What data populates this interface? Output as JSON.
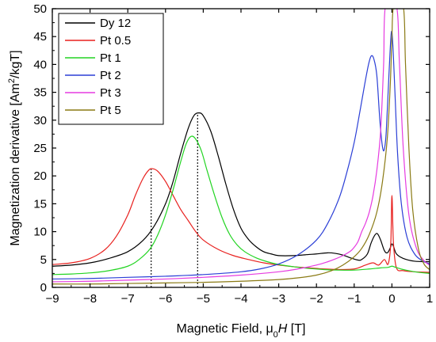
{
  "chart_data": {
    "type": "line",
    "xlabel": "Magnetic Field, μ0H [T]",
    "ylabel": "Magnetization derivative [Am2/kgT]",
    "xlim": [
      -9,
      1
    ],
    "ylim": [
      0,
      50
    ],
    "xticks": [
      -9,
      -8,
      -7,
      -6,
      -5,
      -4,
      -3,
      -2,
      -1,
      0,
      1
    ],
    "yticks": [
      0,
      5,
      10,
      15,
      20,
      25,
      30,
      35,
      40,
      45,
      50
    ],
    "legend_position": "top-left",
    "grid": false,
    "annotations": [
      {
        "type": "vertical-dotted-line",
        "x": -6.38,
        "y_top": 21.2
      },
      {
        "type": "vertical-dotted-line",
        "x": -5.15,
        "y_top": 31.2
      }
    ],
    "series": [
      {
        "name": "Dy 12",
        "color": "#000000",
        "points": [
          [
            -9,
            3.8
          ],
          [
            -8.5,
            4.0
          ],
          [
            -8,
            4.4
          ],
          [
            -7.5,
            5.2
          ],
          [
            -7,
            6.4
          ],
          [
            -6.6,
            8.4
          ],
          [
            -6.3,
            11.0
          ],
          [
            -6.0,
            15.0
          ],
          [
            -5.8,
            19.0
          ],
          [
            -5.6,
            24.0
          ],
          [
            -5.4,
            28.5
          ],
          [
            -5.25,
            30.8
          ],
          [
            -5.12,
            31.3
          ],
          [
            -5.0,
            30.8
          ],
          [
            -4.8,
            28.0
          ],
          [
            -4.6,
            23.5
          ],
          [
            -4.4,
            18.5
          ],
          [
            -4.2,
            14.0
          ],
          [
            -4.0,
            10.6
          ],
          [
            -3.8,
            8.6
          ],
          [
            -3.6,
            7.3
          ],
          [
            -3.4,
            6.4
          ],
          [
            -3.2,
            6.0
          ],
          [
            -3.0,
            5.7
          ],
          [
            -2.6,
            5.7
          ],
          [
            -2.2,
            5.9
          ],
          [
            -2.0,
            6.0
          ],
          [
            -1.7,
            6.2
          ],
          [
            -1.5,
            6.1
          ],
          [
            -1.3,
            5.8
          ],
          [
            -1.1,
            5.3
          ],
          [
            -0.9,
            4.9
          ],
          [
            -0.8,
            5.0
          ],
          [
            -0.65,
            6.0
          ],
          [
            -0.55,
            8.0
          ],
          [
            -0.45,
            9.4
          ],
          [
            -0.38,
            9.6
          ],
          [
            -0.3,
            8.5
          ],
          [
            -0.2,
            6.6
          ],
          [
            -0.12,
            6.2
          ],
          [
            -0.05,
            7.0
          ],
          [
            0.0,
            7.8
          ],
          [
            0.05,
            7.2
          ],
          [
            0.12,
            6.0
          ],
          [
            0.3,
            5.2
          ],
          [
            0.6,
            4.7
          ],
          [
            1.0,
            4.6
          ]
        ]
      },
      {
        "name": "Pt 0.5",
        "color": "#e8211f",
        "points": [
          [
            -9,
            4.1
          ],
          [
            -8.5,
            4.4
          ],
          [
            -8,
            5.2
          ],
          [
            -7.6,
            6.8
          ],
          [
            -7.3,
            9.2
          ],
          [
            -7.0,
            13.0
          ],
          [
            -6.8,
            16.5
          ],
          [
            -6.6,
            19.5
          ],
          [
            -6.45,
            21.0
          ],
          [
            -6.35,
            21.3
          ],
          [
            -6.2,
            20.8
          ],
          [
            -6.0,
            19.0
          ],
          [
            -5.8,
            16.5
          ],
          [
            -5.6,
            14.0
          ],
          [
            -5.4,
            12.0
          ],
          [
            -5.2,
            10.0
          ],
          [
            -5.0,
            8.5
          ],
          [
            -4.6,
            6.8
          ],
          [
            -4.2,
            5.7
          ],
          [
            -3.8,
            5.0
          ],
          [
            -3.4,
            4.4
          ],
          [
            -3.0,
            4.0
          ],
          [
            -2.6,
            3.7
          ],
          [
            -2.2,
            3.5
          ],
          [
            -1.8,
            3.3
          ],
          [
            -1.4,
            3.2
          ],
          [
            -1.0,
            3.3
          ],
          [
            -0.7,
            4.0
          ],
          [
            -0.5,
            4.4
          ],
          [
            -0.35,
            4.0
          ],
          [
            -0.2,
            5.0
          ],
          [
            -0.1,
            4.2
          ],
          [
            -0.03,
            8.0
          ],
          [
            0.0,
            16.5
          ],
          [
            0.04,
            8.0
          ],
          [
            0.12,
            3.5
          ],
          [
            0.3,
            3.0
          ],
          [
            0.6,
            2.8
          ],
          [
            1.0,
            2.7
          ]
        ]
      },
      {
        "name": "Pt 1",
        "color": "#22d422",
        "points": [
          [
            -9,
            2.3
          ],
          [
            -8.5,
            2.4
          ],
          [
            -8,
            2.6
          ],
          [
            -7.5,
            3.0
          ],
          [
            -7.0,
            3.8
          ],
          [
            -6.7,
            5.0
          ],
          [
            -6.4,
            7.0
          ],
          [
            -6.2,
            9.5
          ],
          [
            -6.0,
            13.0
          ],
          [
            -5.8,
            17.5
          ],
          [
            -5.6,
            22.5
          ],
          [
            -5.45,
            25.8
          ],
          [
            -5.32,
            27.1
          ],
          [
            -5.2,
            26.6
          ],
          [
            -5.05,
            24.5
          ],
          [
            -4.9,
            21.0
          ],
          [
            -4.7,
            16.5
          ],
          [
            -4.5,
            12.5
          ],
          [
            -4.3,
            9.5
          ],
          [
            -4.1,
            7.6
          ],
          [
            -3.9,
            6.4
          ],
          [
            -3.6,
            5.3
          ],
          [
            -3.3,
            4.6
          ],
          [
            -3.0,
            4.1
          ],
          [
            -2.6,
            3.7
          ],
          [
            -2.2,
            3.4
          ],
          [
            -1.8,
            3.2
          ],
          [
            -1.4,
            3.1
          ],
          [
            -1.0,
            3.1
          ],
          [
            -0.6,
            3.3
          ],
          [
            -0.3,
            3.5
          ],
          [
            -0.1,
            3.6
          ],
          [
            0.0,
            3.8
          ],
          [
            0.1,
            3.6
          ],
          [
            0.3,
            3.2
          ],
          [
            0.6,
            2.8
          ],
          [
            1.0,
            2.5
          ]
        ]
      },
      {
        "name": "Pt 2",
        "color": "#2b3fd6",
        "points": [
          [
            -9,
            1.5
          ],
          [
            -8,
            1.6
          ],
          [
            -7,
            1.8
          ],
          [
            -6,
            2.0
          ],
          [
            -5,
            2.3
          ],
          [
            -4,
            2.8
          ],
          [
            -3.5,
            3.3
          ],
          [
            -3.0,
            4.2
          ],
          [
            -2.5,
            5.8
          ],
          [
            -2.0,
            8.5
          ],
          [
            -1.7,
            11.5
          ],
          [
            -1.4,
            16.0
          ],
          [
            -1.2,
            20.5
          ],
          [
            -1.0,
            26.0
          ],
          [
            -0.85,
            31.5
          ],
          [
            -0.72,
            36.5
          ],
          [
            -0.62,
            40.0
          ],
          [
            -0.55,
            41.5
          ],
          [
            -0.48,
            41.0
          ],
          [
            -0.4,
            38.0
          ],
          [
            -0.32,
            30.0
          ],
          [
            -0.25,
            25.2
          ],
          [
            -0.2,
            24.8
          ],
          [
            -0.15,
            28.0
          ],
          [
            -0.08,
            38.0
          ],
          [
            -0.02,
            45.5
          ],
          [
            0.02,
            44.0
          ],
          [
            0.08,
            35.0
          ],
          [
            0.15,
            24.0
          ],
          [
            0.25,
            15.0
          ],
          [
            0.4,
            9.0
          ],
          [
            0.6,
            6.0
          ],
          [
            0.8,
            4.8
          ],
          [
            1.0,
            4.2
          ]
        ]
      },
      {
        "name": "Pt 3",
        "color": "#e63be0",
        "points": [
          [
            -9,
            1.0
          ],
          [
            -8,
            1.1
          ],
          [
            -7,
            1.3
          ],
          [
            -6,
            1.5
          ],
          [
            -5,
            1.8
          ],
          [
            -4,
            2.2
          ],
          [
            -3,
            2.8
          ],
          [
            -2.5,
            3.3
          ],
          [
            -2.0,
            4.0
          ],
          [
            -1.7,
            4.6
          ],
          [
            -1.5,
            5.1
          ],
          [
            -1.3,
            5.7
          ],
          [
            -1.1,
            6.5
          ],
          [
            -1.0,
            7.2
          ],
          [
            -0.9,
            8.2
          ],
          [
            -0.8,
            10.0
          ],
          [
            -0.7,
            11.5
          ],
          [
            -0.6,
            13.5
          ],
          [
            -0.5,
            16.5
          ],
          [
            -0.4,
            21.0
          ],
          [
            -0.3,
            28.0
          ],
          [
            -0.22,
            40.0
          ],
          [
            -0.17,
            50.5
          ],
          [
            0.12,
            50.5
          ],
          [
            0.2,
            40.0
          ],
          [
            0.3,
            25.0
          ],
          [
            0.45,
            13.0
          ],
          [
            0.65,
            7.0
          ],
          [
            0.85,
            4.8
          ],
          [
            1.0,
            4.0
          ]
        ]
      },
      {
        "name": "Pt 5",
        "color": "#8a7a14",
        "points": [
          [
            -9,
            0.6
          ],
          [
            -8,
            0.6
          ],
          [
            -7,
            0.7
          ],
          [
            -6,
            0.8
          ],
          [
            -5,
            0.9
          ],
          [
            -4,
            1.1
          ],
          [
            -3,
            1.4
          ],
          [
            -2.5,
            1.7
          ],
          [
            -2.0,
            2.2
          ],
          [
            -1.6,
            3.0
          ],
          [
            -1.3,
            4.0
          ],
          [
            -1.0,
            5.5
          ],
          [
            -0.8,
            7.0
          ],
          [
            -0.6,
            9.5
          ],
          [
            -0.4,
            13.5
          ],
          [
            -0.25,
            19.0
          ],
          [
            -0.12,
            27.0
          ],
          [
            -0.04,
            37.0
          ],
          [
            0.0,
            45.0
          ],
          [
            0.05,
            50.5
          ],
          [
            0.3,
            50.5
          ],
          [
            0.36,
            40.0
          ],
          [
            0.45,
            25.0
          ],
          [
            0.55,
            14.0
          ],
          [
            0.7,
            7.0
          ],
          [
            0.85,
            4.2
          ],
          [
            1.0,
            3.2
          ]
        ]
      }
    ]
  }
}
